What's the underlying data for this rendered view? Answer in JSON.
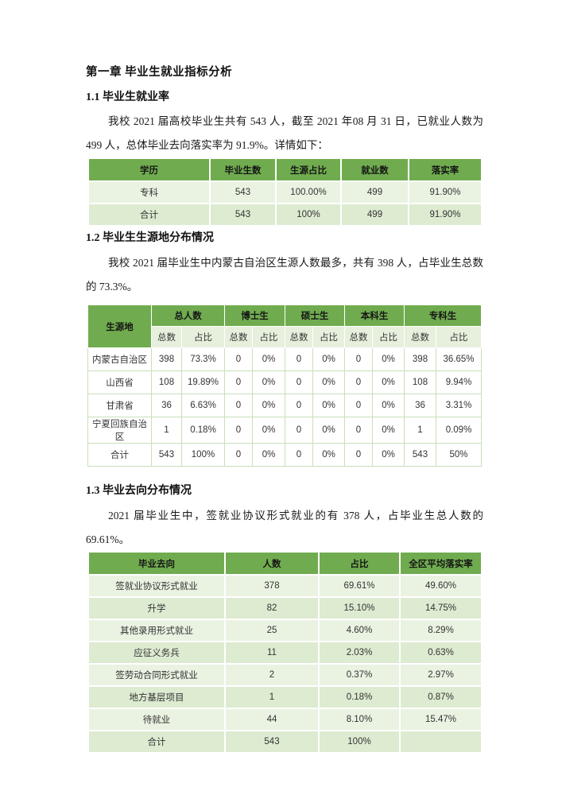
{
  "document": {
    "chapter_title": "第一章 毕业生就业指标分析"
  },
  "sections": {
    "s1": {
      "heading": "1.1 毕业生就业率",
      "paragraph": "我校 2021 届高校毕业生共有 543 人，截至 2021 年08 月 31 日，已就业人数为499 人，总体毕业去向落实率为 91.9%。详情如下："
    },
    "s2": {
      "heading": "1.2 毕业生生源地分布情况",
      "paragraph": "我校 2021 届毕业生中内蒙古自治区生源人数最多，共有 398 人，占毕业生总数的 73.3%。"
    },
    "s3": {
      "heading": "1.3 毕业去向分布情况",
      "paragraph": "2021 届毕业生中，签就业协议形式就业的有 378 人，占毕业生总人数的69.61%。"
    }
  },
  "tables": {
    "employment_rate": {
      "headers": [
        "学历",
        "毕业生数",
        "生源占比",
        "就业数",
        "落实率"
      ],
      "rows": [
        [
          "专科",
          "543",
          "100.00%",
          "499",
          "91.90%"
        ],
        [
          "合计",
          "543",
          "100%",
          "499",
          "91.90%"
        ]
      ]
    },
    "origin_distribution": {
      "corner_header": "生源地",
      "group_headers": [
        "总人数",
        "博士生",
        "硕士生",
        "本科生",
        "专科生"
      ],
      "sub_headers": [
        "总数",
        "占比"
      ],
      "rows": [
        [
          "内蒙古自治区",
          "398",
          "73.3%",
          "0",
          "0%",
          "0",
          "0%",
          "0",
          "0%",
          "398",
          "36.65%"
        ],
        [
          "山西省",
          "108",
          "19.89%",
          "0",
          "0%",
          "0",
          "0%",
          "0",
          "0%",
          "108",
          "9.94%"
        ],
        [
          "甘肃省",
          "36",
          "6.63%",
          "0",
          "0%",
          "0",
          "0%",
          "0",
          "0%",
          "36",
          "3.31%"
        ],
        [
          "宁夏回族自治区",
          "1",
          "0.18%",
          "0",
          "0%",
          "0",
          "0%",
          "0",
          "0%",
          "1",
          "0.09%"
        ],
        [
          "合计",
          "543",
          "100%",
          "0",
          "0%",
          "0",
          "0%",
          "0",
          "0%",
          "543",
          "50%"
        ]
      ]
    },
    "destination_distribution": {
      "headers": [
        "毕业去向",
        "人数",
        "占比",
        "全区平均落实率"
      ],
      "rows": [
        [
          "签就业协议形式就业",
          "378",
          "69.61%",
          "49.60%"
        ],
        [
          "升学",
          "82",
          "15.10%",
          "14.75%"
        ],
        [
          "其他录用形式就业",
          "25",
          "4.60%",
          "8.29%"
        ],
        [
          "应征义务兵",
          "11",
          "2.03%",
          "0.63%"
        ],
        [
          "签劳动合同形式就业",
          "2",
          "0.37%",
          "2.97%"
        ],
        [
          "地方基层项目",
          "1",
          "0.18%",
          "0.87%"
        ],
        [
          "待就业",
          "44",
          "8.10%",
          "15.47%"
        ],
        [
          "合计",
          "543",
          "100%",
          ""
        ]
      ]
    }
  },
  "colors": {
    "header_green": "#70AC4F",
    "band_light": "#EAF3E2",
    "band_dark": "#DDEBD1",
    "subheader_bg": "#E7F0DD",
    "grid_green": "#C8E0BA"
  }
}
